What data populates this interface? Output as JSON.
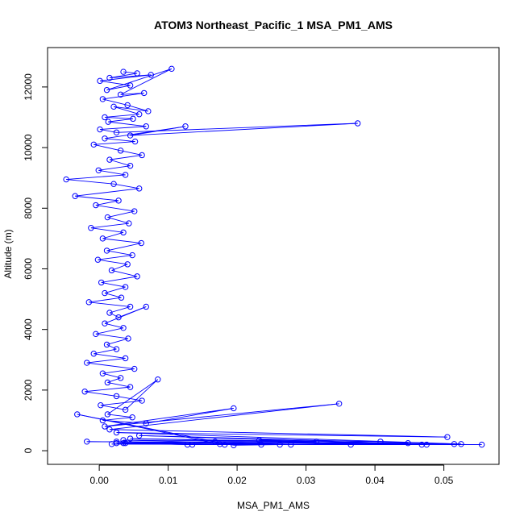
{
  "chart_data": {
    "type": "line",
    "title": "ATOM3 Northeast_Pacific_1 MSA_PM1_AMS",
    "xlabel": "MSA_PM1_AMS",
    "ylabel": "Altitude (m)",
    "xlim": [
      -0.0075,
      0.058
    ],
    "ylim": [
      -450,
      13300
    ],
    "xticks": [
      0.0,
      0.01,
      0.02,
      0.03,
      0.04,
      0.05
    ],
    "xtick_labels": [
      "0.00",
      "0.01",
      "0.02",
      "0.03",
      "0.04",
      "0.05"
    ],
    "yticks": [
      0,
      2000,
      4000,
      6000,
      8000,
      10000,
      12000
    ],
    "ytick_labels": [
      "0",
      "2000",
      "4000",
      "6000",
      "8000",
      "10000",
      "12000"
    ],
    "grid": false,
    "marker": "open-circle",
    "line_color": "#0000ff",
    "series": [
      {
        "x": [
          0.0035,
          0.0055,
          0.0015,
          0.0075,
          0.0001,
          0.0045,
          0.0011,
          0.0105,
          0.0031,
          0.0065,
          0.0005,
          0.0041,
          0.0071,
          0.0021,
          0.0058,
          0.0008,
          0.0049,
          0.0013,
          0.0068,
          0.0001,
          0.0025,
          0.0375,
          0.0045,
          0.0125,
          0.0008,
          0.0052,
          -0.0008,
          0.0031,
          0.0062,
          0.0015,
          0.0045,
          -0.0001,
          0.0038,
          -0.0048,
          0.0021,
          0.0058,
          -0.0035,
          0.0028,
          -0.0005,
          0.0051,
          0.0012,
          0.0043,
          -0.0012,
          0.0035,
          0.0005,
          0.0061,
          0.0011,
          0.0048,
          -0.0002,
          0.0041,
          0.0018,
          0.0055,
          0.0003,
          0.0038,
          0.0008,
          0.0032,
          -0.0015,
          0.0045,
          0.0015,
          0.0028,
          0.0068,
          0.0008,
          0.0035,
          -0.0005,
          0.0042,
          0.0011,
          0.0025,
          -0.0008,
          0.0038,
          -0.0018,
          0.0051,
          0.0005,
          0.0031,
          0.0012,
          0.0045,
          -0.0021,
          0.0025,
          0.0062,
          0.0002,
          0.0038,
          0.0085,
          0.0012,
          0.0048,
          0.0005,
          0.0068,
          0.0195,
          0.0008,
          0.0348,
          0.0015,
          0.0505,
          0.0025,
          0.0525,
          0.0058,
          0.0468,
          0.0045,
          0.0315,
          0.0035,
          0.0278,
          0.0025,
          0.0182,
          0.0038,
          0.0235,
          0.0018,
          0.0555,
          -0.0018,
          0.0515,
          0.0365,
          0.0232,
          0.0408,
          0.0135,
          0.0025,
          0.0175,
          -0.0032,
          0.0195,
          0.0262,
          0.0448,
          0.0168,
          0.0035,
          0.0128,
          0.0475
        ],
        "y": [
          12500,
          12450,
          12300,
          12400,
          12200,
          12050,
          11900,
          12600,
          11750,
          11800,
          11600,
          11400,
          11200,
          11350,
          11100,
          11000,
          10950,
          10850,
          10700,
          10600,
          10500,
          10800,
          10400,
          10700,
          10300,
          10200,
          10100,
          9900,
          9750,
          9600,
          9400,
          9250,
          9100,
          8950,
          8800,
          8650,
          8400,
          8250,
          8100,
          7900,
          7700,
          7500,
          7350,
          7200,
          7000,
          6850,
          6600,
          6450,
          6300,
          6150,
          5950,
          5750,
          5550,
          5400,
          5200,
          5050,
          4900,
          4750,
          4550,
          4400,
          4750,
          4200,
          4050,
          3850,
          3700,
          3500,
          3350,
          3200,
          3050,
          2900,
          2700,
          2550,
          2400,
          2250,
          2100,
          1950,
          1800,
          1650,
          1500,
          1350,
          2350,
          1200,
          1100,
          1000,
          900,
          1400,
          800,
          1550,
          700,
          450,
          600,
          220,
          500,
          200,
          400,
          300,
          350,
          200,
          300,
          200,
          250,
          200,
          220,
          200,
          300,
          220,
          200,
          350,
          300,
          200,
          250,
          220,
          1200,
          180,
          200,
          250,
          300,
          250,
          200,
          200
        ]
      }
    ]
  }
}
